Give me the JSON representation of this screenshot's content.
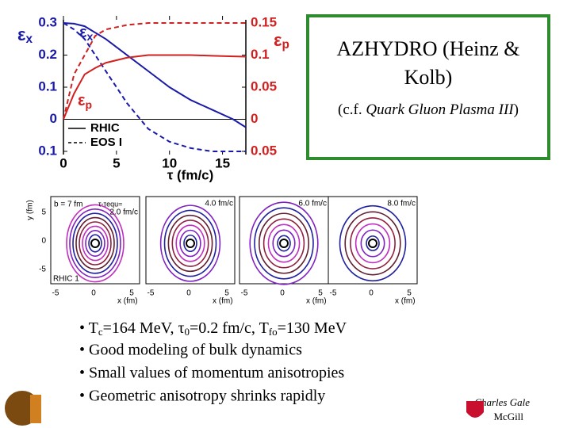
{
  "chart_data": {
    "type": "line",
    "x": [
      0,
      1,
      2,
      3,
      4,
      6,
      8,
      10,
      12,
      14,
      16,
      17.2
    ],
    "xlim": [
      0,
      17.2
    ],
    "xticks": [
      0,
      5,
      10,
      15
    ],
    "xlabel": "τ (fm/c)",
    "ylim": [
      -0.11,
      0.31
    ],
    "yticks": [
      {
        "value": -0.1,
        "label": "0.1"
      },
      0,
      0.1,
      0.2,
      0.3
    ],
    "y2lim": [
      -0.055,
      0.155
    ],
    "y2ticks": [
      {
        "value": -0.05,
        "label": "0.05"
      },
      0,
      0.05,
      0.1,
      0.15
    ],
    "ylabel": {
      "symbol": "ε",
      "sub": "x"
    },
    "y2label": {
      "symbol": "ε",
      "sub": "p"
    },
    "annotations": [
      {
        "symbol": "ε",
        "sub": "x"
      },
      {
        "symbol": "ε",
        "sub": "p"
      }
    ],
    "series": [
      {
        "name": "RHIC",
        "color": "#1a1aa8",
        "dash": false,
        "values": [
          0.3,
          0.298,
          0.29,
          0.27,
          0.25,
          0.2,
          0.15,
          0.1,
          0.06,
          0.03,
          0.0,
          -0.025
        ]
      },
      {
        "name": "EOS I",
        "color": "#1a1aa8",
        "dash": true,
        "values": [
          0.3,
          0.28,
          0.25,
          0.2,
          0.15,
          0.05,
          -0.03,
          -0.07,
          -0.09,
          -0.1,
          -0.1,
          -0.1
        ]
      },
      {
        "name": "RHIC",
        "color": "#d02020",
        "dash": false,
        "axis": "y2",
        "values": [
          0,
          0.04,
          0.07,
          0.08,
          0.088,
          0.096,
          0.1,
          0.1,
          0.1,
          0.099,
          0.098,
          0.0975
        ]
      },
      {
        "name": "EOS I",
        "color": "#d02020",
        "dash": true,
        "axis": "y2",
        "values": [
          0,
          0.07,
          0.1,
          0.13,
          0.14,
          0.147,
          0.15,
          0.15,
          0.15,
          0.15,
          0.15,
          0.15
        ]
      }
    ]
  },
  "box": {
    "title": "AZHYDRO (Heinz & Kolb)",
    "note_prefix": "(c.f. ",
    "note_italic": "Quark Gluon Plasma III",
    "note_suffix": ")"
  },
  "panels": {
    "ylabel": "y (fm)",
    "yticks": [
      "5",
      "0",
      "-5"
    ],
    "xticks": [
      "-5",
      "0",
      "5"
    ],
    "xlabel": "x (fm)",
    "b": "b = 7 fm",
    "tau": "τ-τequ=",
    "times": [
      "2.0 fm/c",
      "4.0 fm/c",
      "6.0 fm/c",
      "8.0 fm/c"
    ],
    "model": "RHIC 1"
  },
  "bullets": {
    "first": [
      {
        "text": "• T"
      },
      {
        "sub": "c"
      },
      {
        "text": "=164 MeV, "
      },
      {
        "text": "τ"
      },
      {
        "sub": "0"
      },
      {
        "text": "=0.2 fm/c, T"
      },
      {
        "sub": "fo"
      },
      {
        "text": "=130 MeV"
      }
    ],
    "rest": [
      "• Good modeling of bulk dynamics",
      "• Small values of momentum anisotropies",
      "• Geometric anisotropy shrinks rapidly"
    ]
  },
  "footer": {
    "name": "Charles Gale",
    "place": "McGill"
  }
}
